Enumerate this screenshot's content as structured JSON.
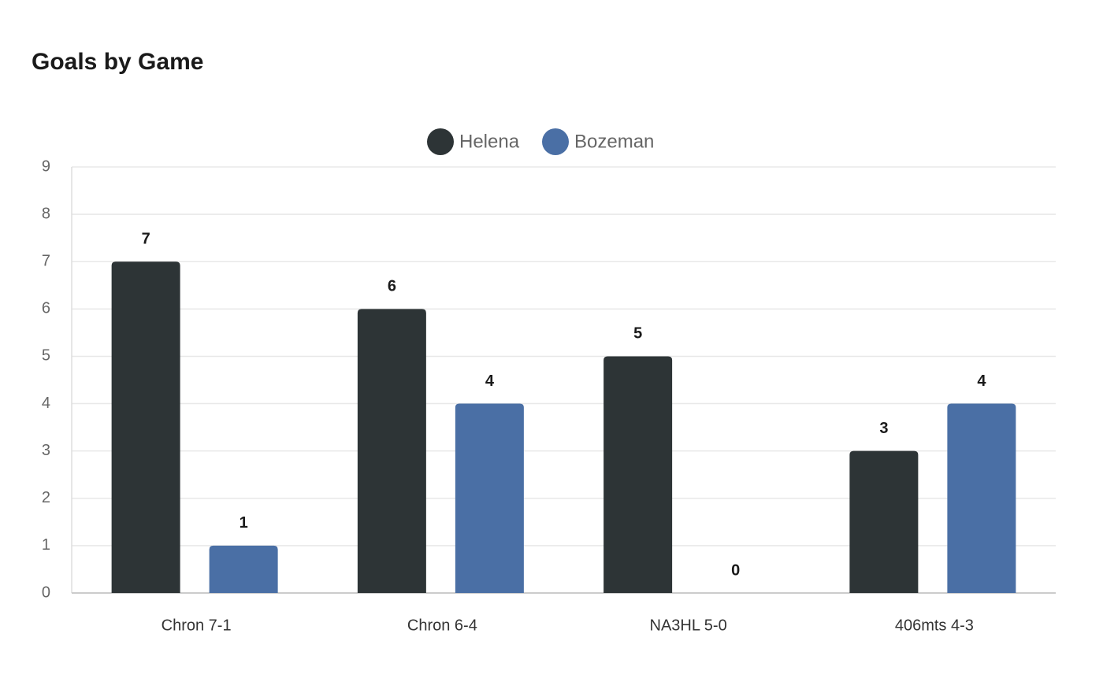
{
  "chart_data": {
    "type": "bar",
    "title": "Goals by Game",
    "categories": [
      "Chron 7-1",
      "Chron 6-4",
      "NA3HL 5-0",
      "406mts 4-3"
    ],
    "series": [
      {
        "name": "Helena",
        "color": "#2d3436",
        "values": [
          7,
          6,
          5,
          3
        ]
      },
      {
        "name": "Bozeman",
        "color": "#4a6fa5",
        "values": [
          1,
          4,
          0,
          4
        ]
      }
    ],
    "ylim": [
      0,
      9
    ],
    "yticks": [
      0,
      1,
      2,
      3,
      4,
      5,
      6,
      7,
      8,
      9
    ],
    "grid": true,
    "legend": "top"
  }
}
